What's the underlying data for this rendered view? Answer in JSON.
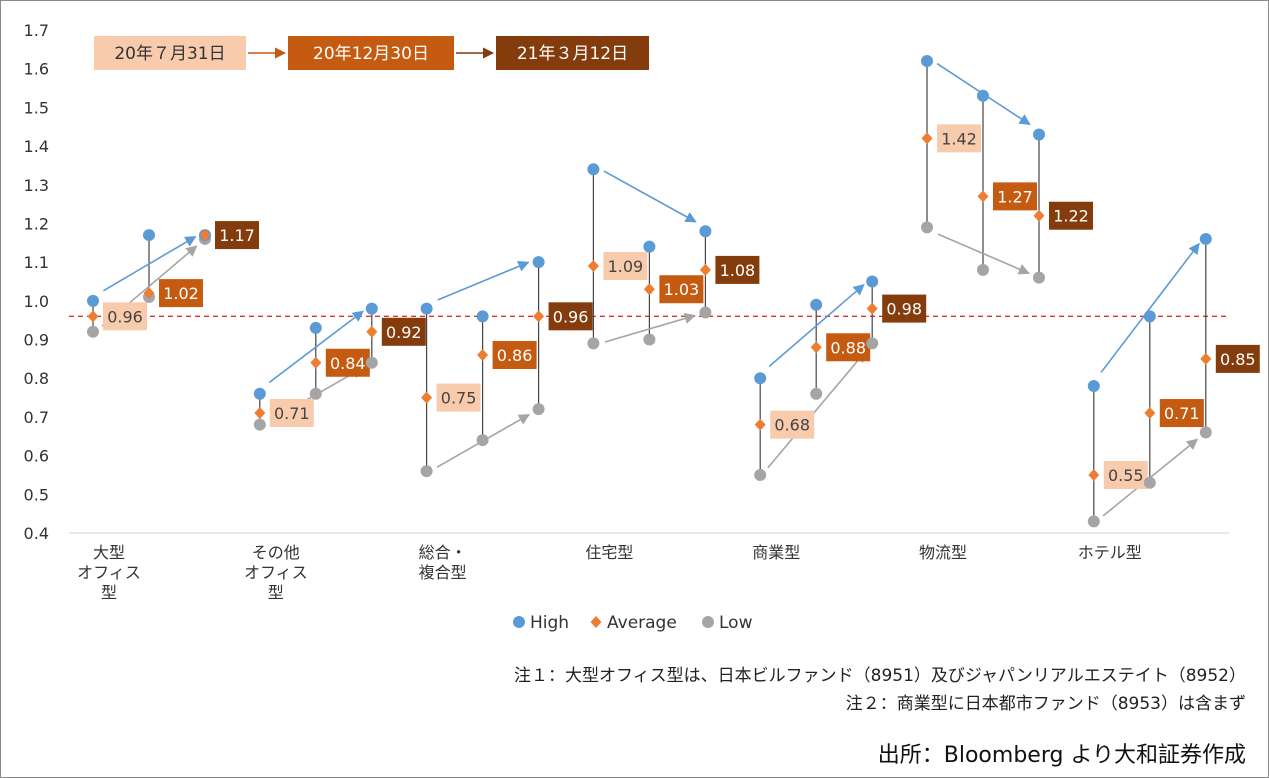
{
  "chart_data": {
    "type": "scatter",
    "ylim": [
      0.4,
      1.7
    ],
    "yticks": [
      "0.4",
      "0.5",
      "0.6",
      "0.7",
      "0.8",
      "0.9",
      "1.0",
      "1.1",
      "1.2",
      "1.3",
      "1.4",
      "1.5",
      "1.6",
      "1.7"
    ],
    "reference_line": 0.96,
    "dates": [
      "20年７月31日",
      "20年12月30日",
      "21年３月12日"
    ],
    "date_colors": [
      "#f8cbad",
      "#c55a11",
      "#843c0c"
    ],
    "series_colors": {
      "high": "#5b9bd5",
      "average": "#ed7d31",
      "low": "#a5a5a5"
    },
    "legend": [
      "High",
      "Average",
      "Low"
    ],
    "categories": [
      {
        "label": [
          "大型",
          "オフィス",
          "型"
        ],
        "high": [
          1.0,
          1.17,
          1.17
        ],
        "average": [
          0.96,
          1.02,
          1.17
        ],
        "low": [
          0.92,
          1.01,
          1.16
        ],
        "avg_labels": [
          "0.96",
          "1.02",
          "1.17"
        ]
      },
      {
        "label": [
          "その他",
          "オフィス",
          "型"
        ],
        "high": [
          0.76,
          0.93,
          0.98
        ],
        "average": [
          0.71,
          0.84,
          0.92
        ],
        "low": [
          0.68,
          0.76,
          0.84
        ],
        "avg_labels": [
          "0.71",
          "0.84",
          "0.92"
        ]
      },
      {
        "label": [
          "総合・",
          "複合型"
        ],
        "high": [
          0.98,
          0.96,
          1.1
        ],
        "average": [
          0.75,
          0.86,
          0.96
        ],
        "low": [
          0.56,
          0.64,
          0.72
        ],
        "avg_labels": [
          "0.75",
          "0.86",
          "0.96"
        ]
      },
      {
        "label": [
          "住宅型"
        ],
        "high": [
          1.34,
          1.14,
          1.18
        ],
        "average": [
          1.09,
          1.03,
          1.08
        ],
        "low": [
          0.89,
          0.9,
          0.97
        ],
        "avg_labels": [
          "1.09",
          "1.03",
          "1.08"
        ]
      },
      {
        "label": [
          "商業型"
        ],
        "high": [
          0.8,
          0.99,
          1.05
        ],
        "average": [
          0.68,
          0.88,
          0.98
        ],
        "low": [
          0.55,
          0.76,
          0.89
        ],
        "avg_labels": [
          "0.68",
          "0.88",
          "0.98"
        ]
      },
      {
        "label": [
          "物流型"
        ],
        "high": [
          1.62,
          1.53,
          1.43
        ],
        "average": [
          1.42,
          1.27,
          1.22
        ],
        "low": [
          1.19,
          1.08,
          1.06
        ],
        "avg_labels": [
          "1.42",
          "1.27",
          "1.22"
        ]
      },
      {
        "label": [
          "ホテル型"
        ],
        "high": [
          0.78,
          0.96,
          1.16
        ],
        "average": [
          0.55,
          0.71,
          0.85
        ],
        "low": [
          0.43,
          0.53,
          0.66
        ],
        "avg_labels": [
          "0.55",
          "0.71",
          "0.85"
        ]
      }
    ]
  },
  "notes": [
    "注１：大型オフィス型は、日本ビルファンド（8951）及びジャパンリアルエステイト（8952）",
    "注２：商業型に日本都市ファンド（8953）は含まず"
  ],
  "source": "出所：Bloomberg より大和証券作成"
}
